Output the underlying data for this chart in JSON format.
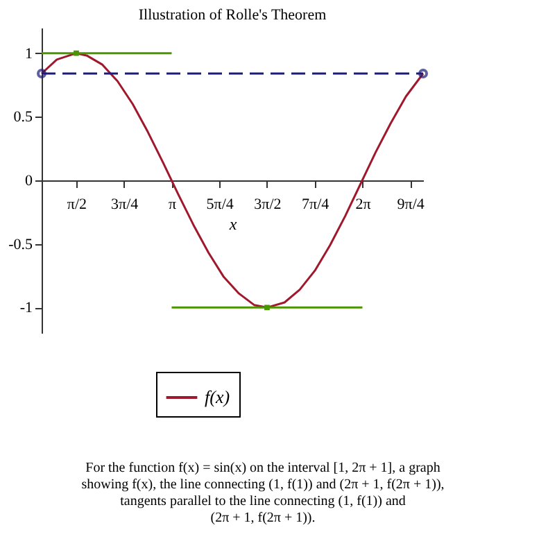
{
  "chart_data": {
    "type": "line",
    "title": "Illustration of Rolle's Theorem",
    "xlabel": "x",
    "xlim": [
      1,
      7.283
    ],
    "ylim": [
      -1.2,
      1.2
    ],
    "xticks": [
      {
        "value": 1.5708,
        "label": "π/2"
      },
      {
        "value": 2.3562,
        "label": "3π/4"
      },
      {
        "value": 3.1416,
        "label": "π"
      },
      {
        "value": 3.927,
        "label": "5π/4"
      },
      {
        "value": 4.7124,
        "label": "3π/2"
      },
      {
        "value": 5.4978,
        "label": "7π/4"
      },
      {
        "value": 6.2832,
        "label": "2π"
      },
      {
        "value": 7.0686,
        "label": "9π/4"
      }
    ],
    "yticks": [
      -1,
      -0.5,
      0,
      0.5,
      1
    ],
    "legend": "bottom",
    "series": [
      {
        "name": "f(x)",
        "type": "line",
        "color": "#a0182c",
        "x": [
          1,
          1.25,
          1.5708,
          1.75,
          2,
          2.25,
          2.5,
          2.75,
          3,
          3.25,
          3.5,
          3.75,
          4,
          4.25,
          4.5,
          4.7124,
          5,
          5.25,
          5.5,
          5.75,
          6,
          6.25,
          6.5,
          6.75,
          7,
          7.283
        ],
        "values": [
          0.84,
          0.95,
          1.0,
          0.98,
          0.91,
          0.78,
          0.6,
          0.38,
          0.14,
          -0.11,
          -0.35,
          -0.57,
          -0.76,
          -0.89,
          -0.98,
          -1.0,
          -0.96,
          -0.86,
          -0.71,
          -0.51,
          -0.28,
          -0.03,
          0.22,
          0.45,
          0.66,
          0.84
        ]
      },
      {
        "type": "line",
        "color": "#1c1c78",
        "line_style": "dashed",
        "marker": "circle",
        "x": [
          1,
          7.283
        ],
        "values": [
          0.84,
          0.84
        ]
      },
      {
        "type": "line",
        "color": "#4a9600",
        "x": [
          1,
          3.1416
        ],
        "values": [
          1,
          1
        ]
      },
      {
        "type": "line",
        "color": "#4a9600",
        "x": [
          3.1416,
          6.2832
        ],
        "values": [
          -1,
          -1
        ]
      },
      {
        "type": "scatter",
        "color": "#4a9600",
        "marker": "square",
        "x": [
          1.5708,
          4.7124
        ],
        "values": [
          1,
          -1
        ]
      }
    ],
    "annotations": [
      "For the function f(x) = sin(x) on the interval [1, 2π + 1], a graph\nshowing f(x), the line connecting (1, f(1)) and (2π + 1, f(2π + 1)),\ntangents parallel to the line connecting (1, f(1)) and\n(2π + 1, f(2π + 1))."
    ]
  }
}
